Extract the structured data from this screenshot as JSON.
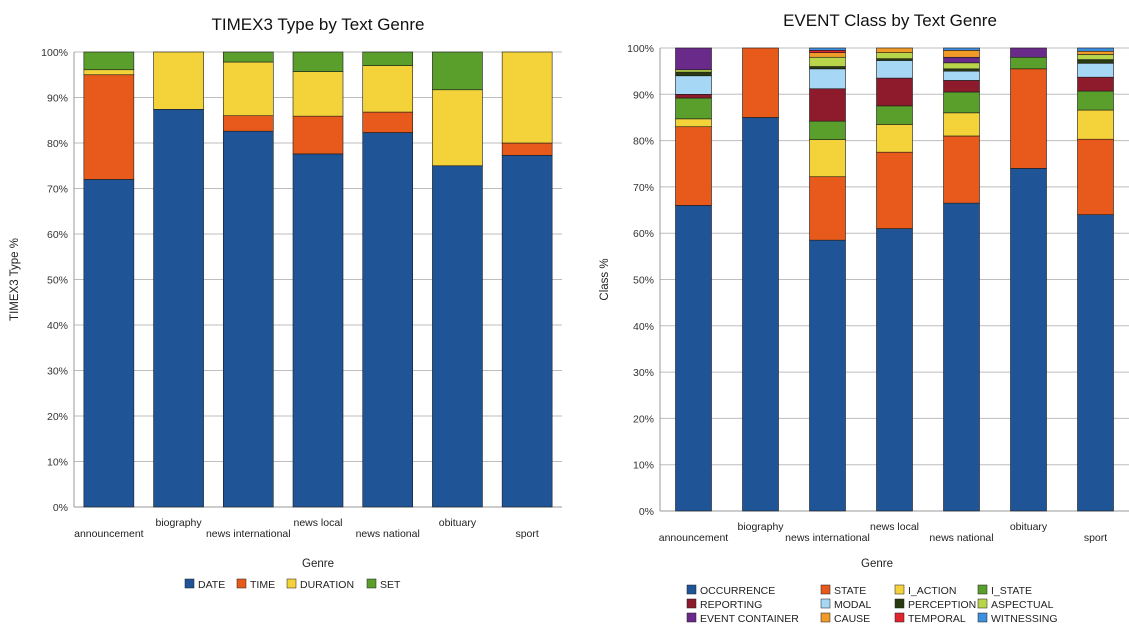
{
  "chart_data": [
    {
      "type": "bar",
      "stacked": true,
      "title": "TIMEX3 Type by Text Genre",
      "xlabel": "Genre",
      "ylabel": "TIMEX3 Type %",
      "ylim": [
        0,
        100
      ],
      "yticks": [
        "0%",
        "10%",
        "20%",
        "30%",
        "40%",
        "50%",
        "60%",
        "70%",
        "80%",
        "90%",
        "100%"
      ],
      "grid": true,
      "legend_position": "bottom",
      "categories": [
        "announcement",
        "biography",
        "news international",
        "news local",
        "news national",
        "obituary",
        "sport"
      ],
      "series": [
        {
          "name": "DATE",
          "color": "#1f5597",
          "values": [
            72.0,
            87.4,
            82.6,
            77.6,
            82.3,
            75.0,
            77.3
          ]
        },
        {
          "name": "TIME",
          "color": "#e85a1b",
          "values": [
            23.0,
            0.0,
            3.4,
            8.3,
            4.5,
            0.0,
            2.7
          ]
        },
        {
          "name": "DURATION",
          "color": "#f4d33a",
          "values": [
            1.1,
            12.6,
            11.8,
            9.8,
            10.2,
            16.7,
            20.0
          ]
        },
        {
          "name": "SET",
          "color": "#5a9e2b",
          "values": [
            3.9,
            0.0,
            2.2,
            4.3,
            3.0,
            8.3,
            0.0
          ]
        }
      ]
    },
    {
      "type": "bar",
      "stacked": true,
      "title": "EVENT Class by Text Genre",
      "xlabel": "Genre",
      "ylabel": "Class %",
      "ylim": [
        0,
        100
      ],
      "yticks": [
        "0%",
        "10%",
        "20%",
        "30%",
        "40%",
        "50%",
        "60%",
        "70%",
        "80%",
        "90%",
        "100%"
      ],
      "grid": true,
      "legend_position": "bottom",
      "categories": [
        "announcement",
        "biography",
        "news international",
        "news local",
        "news national",
        "obituary",
        "sport"
      ],
      "series": [
        {
          "name": "OCCURRENCE",
          "color": "#1f5597",
          "values": [
            66.0,
            85.0,
            58.5,
            61.0,
            66.5,
            74.0,
            64.0
          ]
        },
        {
          "name": "STATE",
          "color": "#e85a1b",
          "values": [
            17.0,
            15.0,
            13.7,
            16.5,
            14.5,
            21.5,
            16.3
          ]
        },
        {
          "name": "I_ACTION",
          "color": "#f4d33a",
          "values": [
            1.7,
            0.0,
            8.0,
            6.0,
            5.0,
            0.0,
            6.3
          ]
        },
        {
          "name": "I_STATE",
          "color": "#5a9e2b",
          "values": [
            4.5,
            0.0,
            4.0,
            4.0,
            4.5,
            2.5,
            4.1
          ]
        },
        {
          "name": "REPORTING",
          "color": "#8e1b2c",
          "values": [
            0.8,
            0.0,
            7.0,
            6.0,
            2.5,
            0.0,
            3.0
          ]
        },
        {
          "name": "MODAL",
          "color": "#a6d7f5",
          "values": [
            4.0,
            0.0,
            4.3,
            3.8,
            2.0,
            0.0,
            3.0
          ]
        },
        {
          "name": "PERCEPTION",
          "color": "#2a3a10",
          "values": [
            0.8,
            0.0,
            0.5,
            0.4,
            0.5,
            0.0,
            0.8
          ]
        },
        {
          "name": "ASPECTUAL",
          "color": "#b9d54a",
          "values": [
            0.5,
            0.0,
            2.0,
            1.3,
            1.3,
            0.0,
            1.1
          ]
        },
        {
          "name": "EVENT CONTAINER",
          "color": "#6a2a8a",
          "values": [
            4.7,
            0.0,
            0.0,
            0.0,
            1.2,
            2.0,
            0.0
          ]
        },
        {
          "name": "CAUSE",
          "color": "#f09b28",
          "values": [
            0.0,
            0.0,
            1.0,
            1.0,
            1.5,
            0.0,
            0.7
          ]
        },
        {
          "name": "TEMPORAL",
          "color": "#e0252c",
          "values": [
            0.0,
            0.0,
            0.5,
            0.0,
            0.0,
            0.0,
            0.0
          ]
        },
        {
          "name": "WITNESSING",
          "color": "#3d8fe0",
          "values": [
            0.0,
            0.0,
            0.5,
            0.0,
            0.5,
            0.0,
            0.7
          ]
        }
      ]
    }
  ]
}
